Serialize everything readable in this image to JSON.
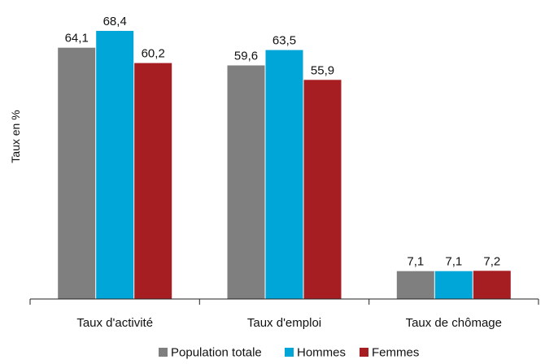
{
  "chart_data": {
    "type": "bar",
    "title": "",
    "xlabel": "",
    "ylabel": "Taux en %",
    "categories": [
      "Taux d'activité",
      "Taux d'emploi",
      "Taux de chômage"
    ],
    "series": [
      {
        "name": "Population totale",
        "values": [
          64.1,
          59.6,
          7.1
        ],
        "labels": [
          "64,1",
          "59,6",
          "7,1"
        ],
        "color": "#7f7f7f"
      },
      {
        "name": "Hommes",
        "values": [
          68.4,
          63.5,
          7.1
        ],
        "labels": [
          "68,4",
          "63,5",
          "7,1"
        ],
        "color": "#00a6d8"
      },
      {
        "name": "Femmes",
        "values": [
          60.2,
          55.9,
          7.2
        ],
        "labels": [
          "60,2",
          "55,9",
          "7,2"
        ],
        "color": "#a71e22"
      }
    ],
    "ylim": [
      0,
      68.4
    ],
    "grid": false,
    "legend_position": "bottom",
    "value_labels_visible": true,
    "y_tick_labels_visible": false
  }
}
